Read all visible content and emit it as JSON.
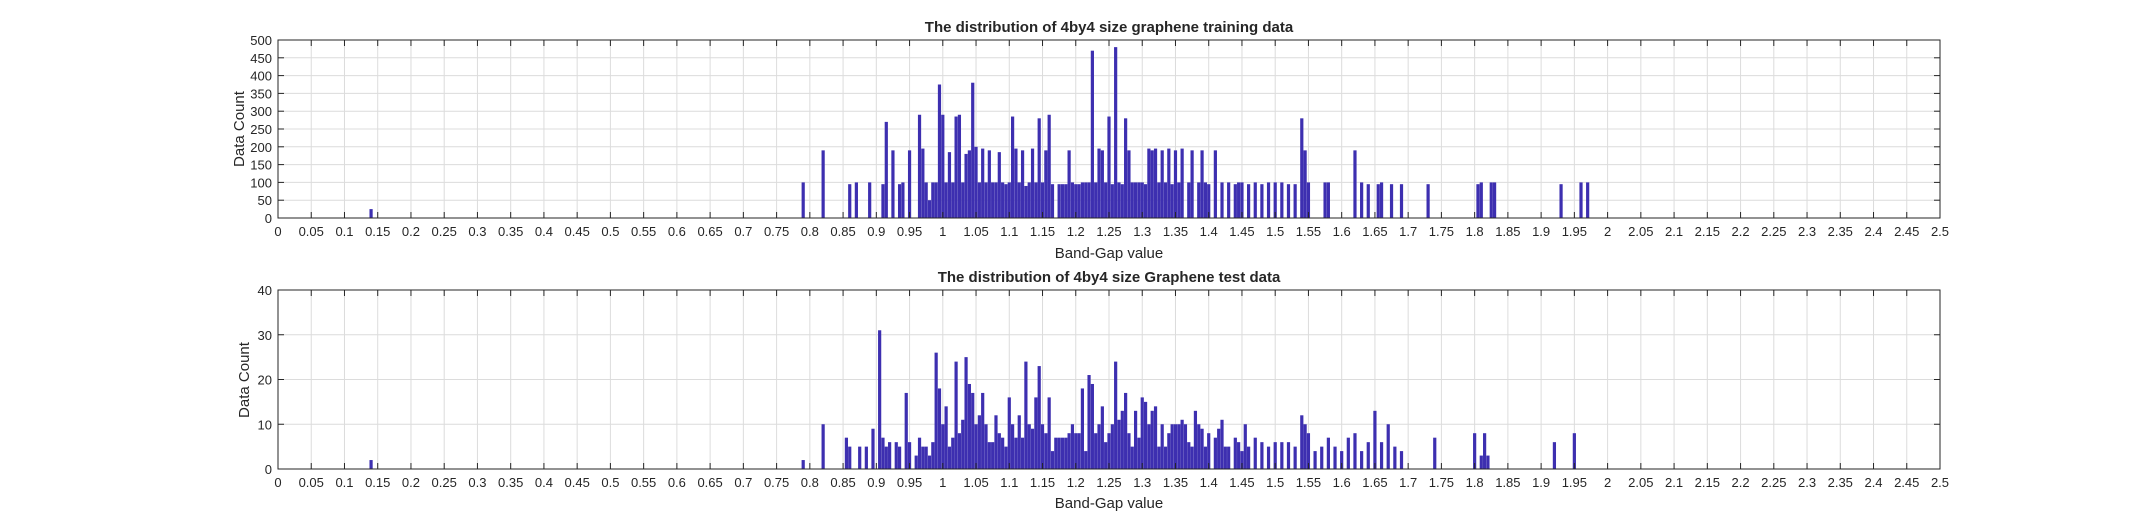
{
  "colors": {
    "bar": "#3d2fb0",
    "grid": "#dcdcdc",
    "axis": "#262626",
    "background": "#ffffff"
  },
  "chart_data": [
    {
      "type": "bar",
      "title": "The distribution of 4by4 size graphene training data",
      "xlabel": "Band-Gap value",
      "ylabel": "Data Count",
      "xlim": [
        0,
        2.5
      ],
      "ylim": [
        0,
        500
      ],
      "xticks": [
        "0",
        "0.05",
        "0.1",
        "0.15",
        "0.2",
        "0.25",
        "0.3",
        "0.35",
        "0.4",
        "0.45",
        "0.5",
        "0.55",
        "0.6",
        "0.65",
        "0.7",
        "0.75",
        "0.8",
        "0.85",
        "0.9",
        "0.95",
        "1",
        "1.05",
        "1.1",
        "1.15",
        "1.2",
        "1.25",
        "1.3",
        "1.35",
        "1.4",
        "1.45",
        "1.5",
        "1.55",
        "1.6",
        "1.65",
        "1.7",
        "1.75",
        "1.8",
        "1.85",
        "1.9",
        "1.95",
        "2",
        "2.05",
        "2.1",
        "2.15",
        "2.2",
        "2.25",
        "2.3",
        "2.35",
        "2.4",
        "2.45",
        "2.5"
      ],
      "yticks": [
        "0",
        "50",
        "100",
        "150",
        "200",
        "250",
        "300",
        "350",
        "400",
        "450",
        "500"
      ],
      "grid": true,
      "bins": [
        {
          "x": 0.14,
          "y": 25
        },
        {
          "x": 0.79,
          "y": 100
        },
        {
          "x": 0.82,
          "y": 190
        },
        {
          "x": 0.86,
          "y": 95
        },
        {
          "x": 0.87,
          "y": 100
        },
        {
          "x": 0.89,
          "y": 100
        },
        {
          "x": 0.91,
          "y": 95
        },
        {
          "x": 0.915,
          "y": 270
        },
        {
          "x": 0.925,
          "y": 190
        },
        {
          "x": 0.935,
          "y": 95
        },
        {
          "x": 0.94,
          "y": 100
        },
        {
          "x": 0.95,
          "y": 190
        },
        {
          "x": 0.965,
          "y": 290
        },
        {
          "x": 0.97,
          "y": 195
        },
        {
          "x": 0.975,
          "y": 100
        },
        {
          "x": 0.98,
          "y": 50
        },
        {
          "x": 0.985,
          "y": 100
        },
        {
          "x": 0.99,
          "y": 100
        },
        {
          "x": 0.995,
          "y": 375
        },
        {
          "x": 1.0,
          "y": 290
        },
        {
          "x": 1.005,
          "y": 100
        },
        {
          "x": 1.01,
          "y": 185
        },
        {
          "x": 1.015,
          "y": 100
        },
        {
          "x": 1.02,
          "y": 285
        },
        {
          "x": 1.025,
          "y": 290
        },
        {
          "x": 1.03,
          "y": 100
        },
        {
          "x": 1.035,
          "y": 180
        },
        {
          "x": 1.04,
          "y": 190
        },
        {
          "x": 1.045,
          "y": 380
        },
        {
          "x": 1.05,
          "y": 200
        },
        {
          "x": 1.055,
          "y": 100
        },
        {
          "x": 1.06,
          "y": 195
        },
        {
          "x": 1.065,
          "y": 100
        },
        {
          "x": 1.07,
          "y": 190
        },
        {
          "x": 1.075,
          "y": 100
        },
        {
          "x": 1.08,
          "y": 100
        },
        {
          "x": 1.085,
          "y": 185
        },
        {
          "x": 1.09,
          "y": 100
        },
        {
          "x": 1.095,
          "y": 95
        },
        {
          "x": 1.1,
          "y": 100
        },
        {
          "x": 1.105,
          "y": 285
        },
        {
          "x": 1.11,
          "y": 195
        },
        {
          "x": 1.115,
          "y": 100
        },
        {
          "x": 1.12,
          "y": 190
        },
        {
          "x": 1.125,
          "y": 90
        },
        {
          "x": 1.13,
          "y": 100
        },
        {
          "x": 1.135,
          "y": 195
        },
        {
          "x": 1.14,
          "y": 100
        },
        {
          "x": 1.145,
          "y": 280
        },
        {
          "x": 1.15,
          "y": 100
        },
        {
          "x": 1.155,
          "y": 190
        },
        {
          "x": 1.16,
          "y": 290
        },
        {
          "x": 1.165,
          "y": 95
        },
        {
          "x": 1.175,
          "y": 95
        },
        {
          "x": 1.18,
          "y": 95
        },
        {
          "x": 1.185,
          "y": 95
        },
        {
          "x": 1.19,
          "y": 190
        },
        {
          "x": 1.195,
          "y": 100
        },
        {
          "x": 1.2,
          "y": 95
        },
        {
          "x": 1.205,
          "y": 95
        },
        {
          "x": 1.21,
          "y": 100
        },
        {
          "x": 1.215,
          "y": 100
        },
        {
          "x": 1.22,
          "y": 100
        },
        {
          "x": 1.225,
          "y": 470
        },
        {
          "x": 1.23,
          "y": 100
        },
        {
          "x": 1.235,
          "y": 195
        },
        {
          "x": 1.24,
          "y": 190
        },
        {
          "x": 1.245,
          "y": 100
        },
        {
          "x": 1.25,
          "y": 285
        },
        {
          "x": 1.255,
          "y": 95
        },
        {
          "x": 1.26,
          "y": 480
        },
        {
          "x": 1.265,
          "y": 100
        },
        {
          "x": 1.27,
          "y": 95
        },
        {
          "x": 1.275,
          "y": 280
        },
        {
          "x": 1.28,
          "y": 190
        },
        {
          "x": 1.285,
          "y": 100
        },
        {
          "x": 1.29,
          "y": 100
        },
        {
          "x": 1.295,
          "y": 100
        },
        {
          "x": 1.3,
          "y": 100
        },
        {
          "x": 1.305,
          "y": 95
        },
        {
          "x": 1.31,
          "y": 195
        },
        {
          "x": 1.315,
          "y": 190
        },
        {
          "x": 1.32,
          "y": 195
        },
        {
          "x": 1.325,
          "y": 100
        },
        {
          "x": 1.33,
          "y": 190
        },
        {
          "x": 1.335,
          "y": 100
        },
        {
          "x": 1.34,
          "y": 195
        },
        {
          "x": 1.345,
          "y": 95
        },
        {
          "x": 1.35,
          "y": 190
        },
        {
          "x": 1.355,
          "y": 100
        },
        {
          "x": 1.36,
          "y": 195
        },
        {
          "x": 1.37,
          "y": 100
        },
        {
          "x": 1.375,
          "y": 190
        },
        {
          "x": 1.385,
          "y": 100
        },
        {
          "x": 1.39,
          "y": 190
        },
        {
          "x": 1.395,
          "y": 100
        },
        {
          "x": 1.4,
          "y": 95
        },
        {
          "x": 1.41,
          "y": 190
        },
        {
          "x": 1.42,
          "y": 100
        },
        {
          "x": 1.43,
          "y": 100
        },
        {
          "x": 1.44,
          "y": 95
        },
        {
          "x": 1.445,
          "y": 100
        },
        {
          "x": 1.45,
          "y": 100
        },
        {
          "x": 1.46,
          "y": 95
        },
        {
          "x": 1.47,
          "y": 100
        },
        {
          "x": 1.48,
          "y": 95
        },
        {
          "x": 1.49,
          "y": 100
        },
        {
          "x": 1.5,
          "y": 100
        },
        {
          "x": 1.51,
          "y": 100
        },
        {
          "x": 1.52,
          "y": 95
        },
        {
          "x": 1.53,
          "y": 95
        },
        {
          "x": 1.54,
          "y": 280
        },
        {
          "x": 1.545,
          "y": 190
        },
        {
          "x": 1.55,
          "y": 100
        },
        {
          "x": 1.575,
          "y": 100
        },
        {
          "x": 1.58,
          "y": 100
        },
        {
          "x": 1.62,
          "y": 190
        },
        {
          "x": 1.63,
          "y": 100
        },
        {
          "x": 1.64,
          "y": 95
        },
        {
          "x": 1.655,
          "y": 95
        },
        {
          "x": 1.66,
          "y": 100
        },
        {
          "x": 1.675,
          "y": 95
        },
        {
          "x": 1.69,
          "y": 95
        },
        {
          "x": 1.73,
          "y": 95
        },
        {
          "x": 1.805,
          "y": 95
        },
        {
          "x": 1.81,
          "y": 100
        },
        {
          "x": 1.825,
          "y": 100
        },
        {
          "x": 1.83,
          "y": 100
        },
        {
          "x": 1.93,
          "y": 95
        },
        {
          "x": 1.96,
          "y": 100
        },
        {
          "x": 1.97,
          "y": 100
        }
      ]
    },
    {
      "type": "bar",
      "title": "The distribution of 4by4 size Graphene test data",
      "xlabel": "Band-Gap value",
      "ylabel": "Data Count",
      "xlim": [
        0,
        2.5
      ],
      "ylim": [
        0,
        40
      ],
      "xticks": [
        "0",
        "0.05",
        "0.1",
        "0.15",
        "0.2",
        "0.25",
        "0.3",
        "0.35",
        "0.4",
        "0.45",
        "0.5",
        "0.55",
        "0.6",
        "0.65",
        "0.7",
        "0.75",
        "0.8",
        "0.85",
        "0.9",
        "0.95",
        "1",
        "1.05",
        "1.1",
        "1.15",
        "1.2",
        "1.25",
        "1.3",
        "1.35",
        "1.4",
        "1.45",
        "1.5",
        "1.55",
        "1.6",
        "1.65",
        "1.7",
        "1.75",
        "1.8",
        "1.85",
        "1.9",
        "1.95",
        "2",
        "2.05",
        "2.1",
        "2.15",
        "2.2",
        "2.25",
        "2.3",
        "2.35",
        "2.4",
        "2.45",
        "2.5"
      ],
      "yticks": [
        "0",
        "10",
        "20",
        "30",
        "40"
      ],
      "grid": true,
      "bins": [
        {
          "x": 0.14,
          "y": 2
        },
        {
          "x": 0.79,
          "y": 2
        },
        {
          "x": 0.82,
          "y": 10
        },
        {
          "x": 0.855,
          "y": 7
        },
        {
          "x": 0.86,
          "y": 5
        },
        {
          "x": 0.875,
          "y": 5
        },
        {
          "x": 0.885,
          "y": 5
        },
        {
          "x": 0.895,
          "y": 9
        },
        {
          "x": 0.905,
          "y": 31
        },
        {
          "x": 0.91,
          "y": 7
        },
        {
          "x": 0.915,
          "y": 5
        },
        {
          "x": 0.92,
          "y": 6
        },
        {
          "x": 0.93,
          "y": 6
        },
        {
          "x": 0.935,
          "y": 5
        },
        {
          "x": 0.945,
          "y": 17
        },
        {
          "x": 0.95,
          "y": 6
        },
        {
          "x": 0.96,
          "y": 3
        },
        {
          "x": 0.965,
          "y": 7
        },
        {
          "x": 0.97,
          "y": 5
        },
        {
          "x": 0.975,
          "y": 5
        },
        {
          "x": 0.98,
          "y": 3
        },
        {
          "x": 0.985,
          "y": 6
        },
        {
          "x": 0.99,
          "y": 26
        },
        {
          "x": 0.995,
          "y": 18
        },
        {
          "x": 1.0,
          "y": 10
        },
        {
          "x": 1.005,
          "y": 14
        },
        {
          "x": 1.01,
          "y": 5
        },
        {
          "x": 1.015,
          "y": 7
        },
        {
          "x": 1.02,
          "y": 24
        },
        {
          "x": 1.025,
          "y": 8
        },
        {
          "x": 1.03,
          "y": 11
        },
        {
          "x": 1.035,
          "y": 25
        },
        {
          "x": 1.04,
          "y": 19
        },
        {
          "x": 1.045,
          "y": 17
        },
        {
          "x": 1.05,
          "y": 10
        },
        {
          "x": 1.055,
          "y": 12
        },
        {
          "x": 1.06,
          "y": 17
        },
        {
          "x": 1.065,
          "y": 10
        },
        {
          "x": 1.07,
          "y": 6
        },
        {
          "x": 1.075,
          "y": 6
        },
        {
          "x": 1.08,
          "y": 12
        },
        {
          "x": 1.085,
          "y": 8
        },
        {
          "x": 1.09,
          "y": 7
        },
        {
          "x": 1.095,
          "y": 5
        },
        {
          "x": 1.1,
          "y": 16
        },
        {
          "x": 1.105,
          "y": 10
        },
        {
          "x": 1.11,
          "y": 7
        },
        {
          "x": 1.115,
          "y": 12
        },
        {
          "x": 1.12,
          "y": 7
        },
        {
          "x": 1.125,
          "y": 24
        },
        {
          "x": 1.13,
          "y": 10
        },
        {
          "x": 1.135,
          "y": 9
        },
        {
          "x": 1.14,
          "y": 16
        },
        {
          "x": 1.145,
          "y": 23
        },
        {
          "x": 1.15,
          "y": 10
        },
        {
          "x": 1.155,
          "y": 8
        },
        {
          "x": 1.16,
          "y": 16
        },
        {
          "x": 1.165,
          "y": 4
        },
        {
          "x": 1.17,
          "y": 7
        },
        {
          "x": 1.175,
          "y": 7
        },
        {
          "x": 1.18,
          "y": 7
        },
        {
          "x": 1.185,
          "y": 7
        },
        {
          "x": 1.19,
          "y": 8
        },
        {
          "x": 1.195,
          "y": 10
        },
        {
          "x": 1.2,
          "y": 8
        },
        {
          "x": 1.205,
          "y": 8
        },
        {
          "x": 1.21,
          "y": 18
        },
        {
          "x": 1.215,
          "y": 4
        },
        {
          "x": 1.22,
          "y": 21
        },
        {
          "x": 1.225,
          "y": 19
        },
        {
          "x": 1.23,
          "y": 8
        },
        {
          "x": 1.235,
          "y": 10
        },
        {
          "x": 1.24,
          "y": 14
        },
        {
          "x": 1.245,
          "y": 6
        },
        {
          "x": 1.25,
          "y": 8
        },
        {
          "x": 1.255,
          "y": 10
        },
        {
          "x": 1.26,
          "y": 24
        },
        {
          "x": 1.265,
          "y": 11
        },
        {
          "x": 1.27,
          "y": 13
        },
        {
          "x": 1.275,
          "y": 17
        },
        {
          "x": 1.28,
          "y": 8
        },
        {
          "x": 1.285,
          "y": 5
        },
        {
          "x": 1.29,
          "y": 13
        },
        {
          "x": 1.295,
          "y": 7
        },
        {
          "x": 1.3,
          "y": 16
        },
        {
          "x": 1.305,
          "y": 15
        },
        {
          "x": 1.31,
          "y": 10
        },
        {
          "x": 1.315,
          "y": 13
        },
        {
          "x": 1.32,
          "y": 14
        },
        {
          "x": 1.325,
          "y": 5
        },
        {
          "x": 1.33,
          "y": 10
        },
        {
          "x": 1.335,
          "y": 5
        },
        {
          "x": 1.34,
          "y": 8
        },
        {
          "x": 1.345,
          "y": 10
        },
        {
          "x": 1.35,
          "y": 10
        },
        {
          "x": 1.355,
          "y": 10
        },
        {
          "x": 1.36,
          "y": 11
        },
        {
          "x": 1.365,
          "y": 10
        },
        {
          "x": 1.37,
          "y": 6
        },
        {
          "x": 1.375,
          "y": 5
        },
        {
          "x": 1.38,
          "y": 13
        },
        {
          "x": 1.385,
          "y": 10
        },
        {
          "x": 1.39,
          "y": 9
        },
        {
          "x": 1.395,
          "y": 5
        },
        {
          "x": 1.4,
          "y": 8
        },
        {
          "x": 1.41,
          "y": 7
        },
        {
          "x": 1.415,
          "y": 9
        },
        {
          "x": 1.42,
          "y": 11
        },
        {
          "x": 1.425,
          "y": 5
        },
        {
          "x": 1.43,
          "y": 5
        },
        {
          "x": 1.44,
          "y": 7
        },
        {
          "x": 1.445,
          "y": 6
        },
        {
          "x": 1.45,
          "y": 4
        },
        {
          "x": 1.455,
          "y": 10
        },
        {
          "x": 1.46,
          "y": 5
        },
        {
          "x": 1.47,
          "y": 7
        },
        {
          "x": 1.48,
          "y": 6
        },
        {
          "x": 1.49,
          "y": 5
        },
        {
          "x": 1.5,
          "y": 6
        },
        {
          "x": 1.51,
          "y": 6
        },
        {
          "x": 1.52,
          "y": 6
        },
        {
          "x": 1.53,
          "y": 5
        },
        {
          "x": 1.54,
          "y": 12
        },
        {
          "x": 1.545,
          "y": 10
        },
        {
          "x": 1.55,
          "y": 8
        },
        {
          "x": 1.56,
          "y": 4
        },
        {
          "x": 1.57,
          "y": 5
        },
        {
          "x": 1.58,
          "y": 7
        },
        {
          "x": 1.59,
          "y": 5
        },
        {
          "x": 1.6,
          "y": 4
        },
        {
          "x": 1.61,
          "y": 7
        },
        {
          "x": 1.62,
          "y": 8
        },
        {
          "x": 1.63,
          "y": 4
        },
        {
          "x": 1.64,
          "y": 6
        },
        {
          "x": 1.65,
          "y": 13
        },
        {
          "x": 1.66,
          "y": 6
        },
        {
          "x": 1.67,
          "y": 10
        },
        {
          "x": 1.68,
          "y": 5
        },
        {
          "x": 1.69,
          "y": 4
        },
        {
          "x": 1.74,
          "y": 7
        },
        {
          "x": 1.8,
          "y": 8
        },
        {
          "x": 1.81,
          "y": 3
        },
        {
          "x": 1.815,
          "y": 8
        },
        {
          "x": 1.82,
          "y": 3
        },
        {
          "x": 1.92,
          "y": 6
        },
        {
          "x": 1.95,
          "y": 8
        }
      ]
    }
  ]
}
